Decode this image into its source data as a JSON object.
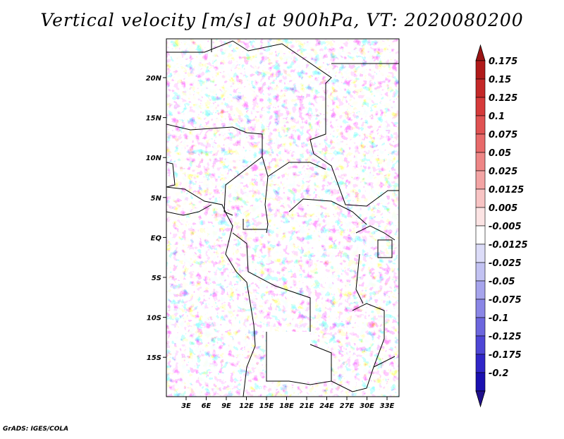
{
  "title": "Vertical velocity [m/s] at 900hPa, VT: 2020080200",
  "credit": "GrADS: IGES/COLA",
  "map": {
    "lat_labels": [
      "20N",
      "15N",
      "10N",
      "5N",
      "EQ",
      "5S",
      "10S",
      "15S"
    ],
    "lon_labels": [
      "3E",
      "6E",
      "9E",
      "12E",
      "15E",
      "18E",
      "21E",
      "24E",
      "27E",
      "30E",
      "33E"
    ],
    "background_colors": {
      "positive": "#e8463c",
      "negative": "#4a3ee0",
      "neutral": "#ffffff",
      "boundary": "#000000"
    }
  },
  "colorbar": {
    "labels": [
      "0.175",
      "0.15",
      "0.125",
      "0.1",
      "0.075",
      "0.05",
      "0.025",
      "0.0125",
      "0.005",
      "-0.005",
      "-0.0125",
      "-0.025",
      "-0.05",
      "-0.075",
      "-0.1",
      "-0.125",
      "-0.175",
      "-0.2"
    ],
    "colors": [
      "#b01a1a",
      "#c42828",
      "#d63a3a",
      "#e05252",
      "#e86a6a",
      "#ee8686",
      "#f3a4a4",
      "#f8c4c4",
      "#fce4e4",
      "#ffffff",
      "#dcdcf8",
      "#c2c2f2",
      "#a6a4ec",
      "#8a86e6",
      "#6c66de",
      "#4e46d6",
      "#3026c8",
      "#1a10b0"
    ],
    "top_color": "#9a1414",
    "bottom_color": "#20108c"
  }
}
